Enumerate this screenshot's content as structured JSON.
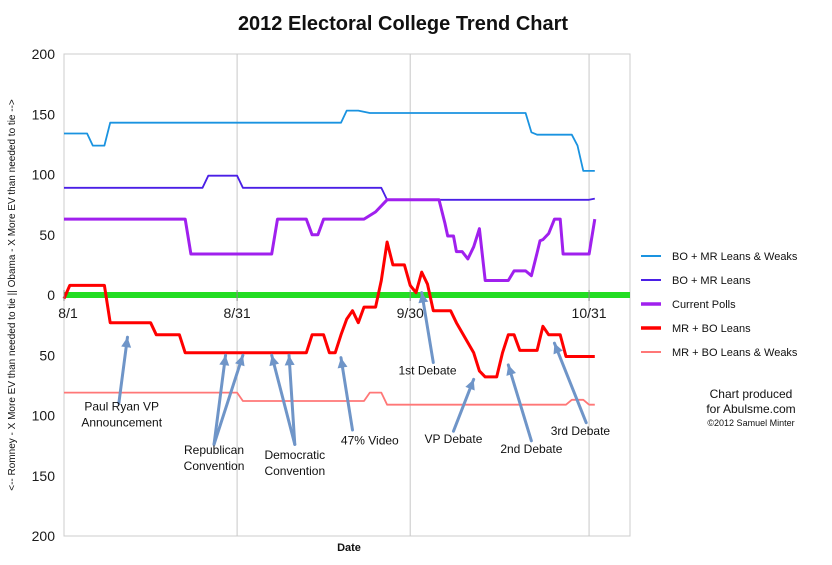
{
  "chart_data": {
    "type": "line",
    "title": "2012 Electoral College Trend Chart",
    "xlabel": "Date",
    "ylabel": "<-- Romney - X More EV than needed to tie ||  Obama - X More EV than needed to tie -->",
    "ylim": [
      -200,
      200
    ],
    "y_ticks": [
      {
        "value": 200,
        "label": "200"
      },
      {
        "value": 150,
        "label": "150"
      },
      {
        "value": 100,
        "label": "100"
      },
      {
        "value": 50,
        "label": "50"
      },
      {
        "value": 0,
        "label": "0"
      },
      {
        "value": -50,
        "label": "50"
      },
      {
        "value": -100,
        "label": "100"
      },
      {
        "value": -150,
        "label": "150"
      },
      {
        "value": -200,
        "label": "200"
      }
    ],
    "x_ticks": [
      {
        "day": 0,
        "label": "8/1"
      },
      {
        "day": 30,
        "label": "8/31"
      },
      {
        "day": 60,
        "label": "9/30"
      },
      {
        "day": 91,
        "label": "10/31"
      }
    ],
    "xlim_days": [
      0,
      100
    ],
    "grid": "vertical lines at monthly ticks",
    "zero_line_color": "#22dd22",
    "series": [
      {
        "name": "BO + MR Leans & Weaks",
        "color": "#1a93e0",
        "points": [
          [
            0,
            134
          ],
          [
            4,
            134
          ],
          [
            5,
            124
          ],
          [
            7,
            124
          ],
          [
            8,
            143
          ],
          [
            48,
            143
          ],
          [
            49,
            153
          ],
          [
            51,
            153
          ],
          [
            53,
            151
          ],
          [
            80,
            151
          ],
          [
            81,
            135
          ],
          [
            82,
            133
          ],
          [
            88,
            133
          ],
          [
            89,
            124
          ],
          [
            90,
            103
          ],
          [
            92,
            103
          ]
        ]
      },
      {
        "name": "BO + MR Leans",
        "color": "#4a1fe6",
        "points": [
          [
            0,
            89
          ],
          [
            24,
            89
          ],
          [
            25,
            99
          ],
          [
            30,
            99
          ],
          [
            31,
            89
          ],
          [
            55,
            89
          ],
          [
            56,
            79
          ],
          [
            91,
            79
          ],
          [
            92,
            80
          ]
        ]
      },
      {
        "name": "Current Polls",
        "color": "#a020ee",
        "points": [
          [
            0,
            63
          ],
          [
            21,
            63
          ],
          [
            22,
            34
          ],
          [
            36,
            34
          ],
          [
            37,
            63
          ],
          [
            42,
            63
          ],
          [
            43,
            50
          ],
          [
            44,
            50
          ],
          [
            45,
            63
          ],
          [
            52,
            63
          ],
          [
            54,
            69
          ],
          [
            56,
            79
          ],
          [
            65,
            79
          ],
          [
            66,
            60
          ],
          [
            66.5,
            49
          ],
          [
            67.5,
            49
          ],
          [
            68,
            36
          ],
          [
            69,
            36
          ],
          [
            70,
            30
          ],
          [
            71,
            40
          ],
          [
            72,
            55
          ],
          [
            73,
            12
          ],
          [
            74,
            12
          ],
          [
            76,
            12
          ],
          [
            77,
            12
          ],
          [
            78,
            20
          ],
          [
            80,
            20
          ],
          [
            81,
            16
          ],
          [
            82,
            35
          ],
          [
            82.5,
            45
          ],
          [
            83,
            46
          ],
          [
            84,
            51
          ],
          [
            85,
            63
          ],
          [
            86,
            63
          ],
          [
            86.5,
            34
          ],
          [
            90,
            34
          ],
          [
            91,
            34
          ],
          [
            92,
            63
          ]
        ]
      },
      {
        "name": "MR + BO Leans",
        "color": "#ff0000",
        "points": [
          [
            0,
            -3
          ],
          [
            1,
            8
          ],
          [
            7,
            8
          ],
          [
            8,
            -23
          ],
          [
            15,
            -23
          ],
          [
            16,
            -33
          ],
          [
            20,
            -33
          ],
          [
            21,
            -48
          ],
          [
            42,
            -48
          ],
          [
            43,
            -33
          ],
          [
            45,
            -33
          ],
          [
            46,
            -48
          ],
          [
            47,
            -48
          ],
          [
            48,
            -33
          ],
          [
            49,
            -20
          ],
          [
            50,
            -13
          ],
          [
            51,
            -23
          ],
          [
            52,
            -10
          ],
          [
            54,
            -10
          ],
          [
            55,
            12
          ],
          [
            56,
            44
          ],
          [
            57,
            25
          ],
          [
            59,
            25
          ],
          [
            60,
            8
          ],
          [
            61,
            2
          ],
          [
            62,
            19
          ],
          [
            63,
            9
          ],
          [
            64,
            -13
          ],
          [
            67,
            -13
          ],
          [
            68,
            -23
          ],
          [
            71,
            -48
          ],
          [
            72,
            -63
          ],
          [
            73,
            -68
          ],
          [
            75,
            -68
          ],
          [
            76,
            -48
          ],
          [
            77,
            -33
          ],
          [
            78,
            -33
          ],
          [
            79,
            -46
          ],
          [
            82,
            -46
          ],
          [
            83,
            -26
          ],
          [
            84,
            -33
          ],
          [
            86,
            -33
          ],
          [
            87,
            -51
          ],
          [
            92,
            -51
          ]
        ]
      },
      {
        "name": "MR + BO Leans & Weaks",
        "color": "#ff7777",
        "points": [
          [
            0,
            -81
          ],
          [
            30,
            -81
          ],
          [
            31,
            -88
          ],
          [
            52,
            -88
          ],
          [
            53,
            -81
          ],
          [
            55,
            -81
          ],
          [
            56,
            -91
          ],
          [
            87,
            -91
          ],
          [
            88,
            -87
          ],
          [
            90,
            -87
          ],
          [
            91,
            -91
          ],
          [
            92,
            -91
          ]
        ]
      }
    ],
    "annotations": [
      {
        "lines": [
          "Paul Ryan VP",
          "Announcement"
        ],
        "targets_day": [
          [
            11,
            -35
          ]
        ],
        "text_day": 10,
        "text_value": -96,
        "arrow_from_day": 9.5,
        "arrow_from_value": -90
      },
      {
        "lines": [
          "Republican",
          "Convention"
        ],
        "targets_day": [
          [
            28,
            -50
          ],
          [
            31,
            -50
          ]
        ],
        "text_day": 26,
        "text_value": -132,
        "arrow_from_day": 26,
        "arrow_from_value": -124
      },
      {
        "lines": [
          "Democratic",
          "Convention"
        ],
        "targets_day": [
          [
            36,
            -50
          ],
          [
            39,
            -50
          ]
        ],
        "text_day": 40,
        "text_value": -136,
        "arrow_from_day": 40,
        "arrow_from_value": -124
      },
      {
        "lines": [
          "47% Video"
        ],
        "targets_day": [
          [
            48,
            -52
          ]
        ],
        "text_day": 53,
        "text_value": -124,
        "arrow_from_day": 50,
        "arrow_from_value": -112
      },
      {
        "lines": [
          "1st Debate"
        ],
        "targets_day": [
          [
            62,
            2
          ]
        ],
        "text_day": 63,
        "text_value": -66,
        "arrow_from_day": 64,
        "arrow_from_value": -56
      },
      {
        "lines": [
          "VP Debate"
        ],
        "targets_day": [
          [
            71,
            -70
          ]
        ],
        "text_day": 67.5,
        "text_value": -123,
        "arrow_from_day": 67.5,
        "arrow_from_value": -113
      },
      {
        "lines": [
          "2nd Debate"
        ],
        "targets_day": [
          [
            77,
            -58
          ]
        ],
        "text_day": 81,
        "text_value": -131,
        "arrow_from_day": 81,
        "arrow_from_value": -121
      },
      {
        "lines": [
          "3rd Debate"
        ],
        "targets_day": [
          [
            85,
            -40
          ]
        ],
        "text_day": 89.5,
        "text_value": -116,
        "arrow_from_day": 90.5,
        "arrow_from_value": -106
      }
    ]
  },
  "credit": {
    "line1": "Chart produced",
    "line2": "for Abulsme.com",
    "line3": "©2012 Samuel Minter"
  }
}
